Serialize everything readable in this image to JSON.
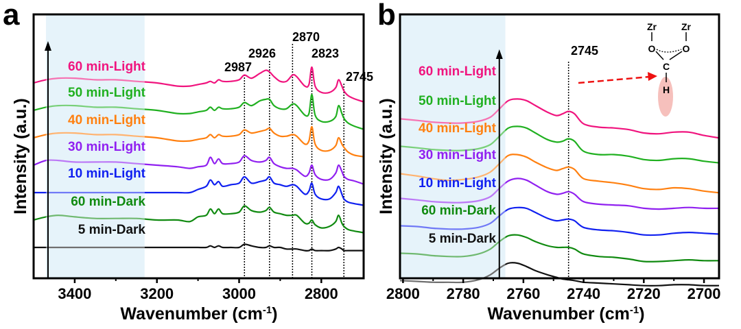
{
  "chart_data": [
    {
      "panel": "a",
      "type": "line",
      "title": "",
      "xlabel": "Wavenumber (cm-1)",
      "xlabel_main": "Wavenumber (cm",
      "xlabel_sup": "-1",
      "xlabel_end": ")",
      "ylabel": "Intensity (a.u.)",
      "xlim": [
        3500,
        2697
      ],
      "x_reversed": true,
      "xticks": [
        3400,
        3200,
        3000,
        2800
      ],
      "xminor": [
        3300,
        3100,
        2900
      ],
      "shaded_region": [
        3470,
        3230
      ],
      "shade_color": "#e6f3fa",
      "arrow_x": 3465,
      "peak_lines": [
        2987,
        2926,
        2870,
        2823,
        2745
      ],
      "peak_labels": [
        "2987",
        "2926",
        "2870",
        "2823",
        "2745"
      ],
      "x": [
        3500,
        3470,
        3440,
        3400,
        3350,
        3300,
        3250,
        3200,
        3150,
        3120,
        3100,
        3080,
        3070,
        3060,
        3050,
        3040,
        3020,
        3000,
        2987,
        2970,
        2950,
        2935,
        2926,
        2915,
        2900,
        2885,
        2870,
        2860,
        2840,
        2830,
        2823,
        2815,
        2800,
        2780,
        2765,
        2758,
        2750,
        2745,
        2735,
        2720,
        2697
      ],
      "series": [
        {
          "name": "60 min-Light",
          "color": "#f0147e",
          "values": [
            0.9,
            0.92,
            0.93,
            0.93,
            0.92,
            0.92,
            0.91,
            0.9,
            0.88,
            0.88,
            0.89,
            0.9,
            0.91,
            0.9,
            0.92,
            0.91,
            0.91,
            0.92,
            0.95,
            0.93,
            0.96,
            0.98,
            0.97,
            0.94,
            0.91,
            0.91,
            0.95,
            0.94,
            0.88,
            0.89,
            1.0,
            0.88,
            0.84,
            0.84,
            0.87,
            0.92,
            0.88,
            0.85,
            0.82,
            0.8,
            0.78
          ]
        },
        {
          "name": "50 min-Light",
          "color": "#20b020",
          "values": [
            0.9,
            0.92,
            0.93,
            0.93,
            0.92,
            0.92,
            0.91,
            0.9,
            0.88,
            0.88,
            0.89,
            0.9,
            0.92,
            0.9,
            0.92,
            0.91,
            0.91,
            0.92,
            0.95,
            0.93,
            0.96,
            0.97,
            0.97,
            0.93,
            0.91,
            0.91,
            0.94,
            0.93,
            0.87,
            0.88,
            1.0,
            0.87,
            0.83,
            0.83,
            0.86,
            0.93,
            0.88,
            0.85,
            0.82,
            0.8,
            0.78
          ]
        },
        {
          "name": "40 min-Light",
          "color": "#ff8010",
          "values": [
            0.9,
            0.92,
            0.93,
            0.93,
            0.92,
            0.92,
            0.91,
            0.9,
            0.88,
            0.88,
            0.89,
            0.9,
            0.92,
            0.9,
            0.92,
            0.91,
            0.91,
            0.92,
            0.95,
            0.93,
            0.94,
            0.95,
            0.96,
            0.93,
            0.91,
            0.91,
            0.92,
            0.91,
            0.86,
            0.88,
            0.97,
            0.86,
            0.82,
            0.82,
            0.85,
            0.9,
            0.86,
            0.84,
            0.81,
            0.79,
            0.78
          ]
        },
        {
          "name": "30 min-Light",
          "color": "#9020f0",
          "values": [
            0.9,
            0.93,
            0.93,
            0.92,
            0.92,
            0.92,
            0.91,
            0.9,
            0.89,
            0.88,
            0.89,
            0.9,
            0.95,
            0.91,
            0.94,
            0.91,
            0.91,
            0.92,
            0.96,
            0.93,
            0.92,
            0.93,
            0.95,
            0.91,
            0.89,
            0.88,
            0.88,
            0.87,
            0.83,
            0.85,
            0.9,
            0.84,
            0.81,
            0.81,
            0.85,
            0.9,
            0.86,
            0.83,
            0.81,
            0.8,
            0.78
          ]
        },
        {
          "name": "10 min-Light",
          "color": "#1020f0",
          "values": [
            0.9,
            0.9,
            0.9,
            0.9,
            0.9,
            0.9,
            0.9,
            0.9,
            0.9,
            0.9,
            0.92,
            0.94,
            0.98,
            0.95,
            0.97,
            0.94,
            0.95,
            0.96,
            1.0,
            0.96,
            0.97,
            0.98,
            1.0,
            0.96,
            0.95,
            0.94,
            0.95,
            0.94,
            0.89,
            0.91,
            0.96,
            0.89,
            0.86,
            0.86,
            0.9,
            0.94,
            0.89,
            0.86,
            0.84,
            0.83,
            0.82
          ]
        },
        {
          "name": "60 min-Dark",
          "color": "#108a10",
          "values": [
            0.9,
            0.92,
            0.93,
            0.92,
            0.91,
            0.91,
            0.91,
            0.9,
            0.9,
            0.89,
            0.92,
            0.93,
            0.97,
            0.94,
            0.97,
            0.94,
            0.94,
            0.95,
            0.99,
            0.96,
            0.95,
            0.96,
            0.98,
            0.95,
            0.94,
            0.93,
            0.93,
            0.93,
            0.88,
            0.88,
            0.9,
            0.87,
            0.85,
            0.86,
            0.89,
            0.93,
            0.88,
            0.86,
            0.84,
            0.83,
            0.82
          ]
        },
        {
          "name": "5 min-Dark",
          "color": "#111111",
          "values": [
            0.9,
            0.9,
            0.9,
            0.9,
            0.9,
            0.9,
            0.9,
            0.9,
            0.9,
            0.9,
            0.9,
            0.9,
            0.91,
            0.9,
            0.91,
            0.9,
            0.9,
            0.9,
            0.92,
            0.91,
            0.9,
            0.9,
            0.91,
            0.9,
            0.9,
            0.89,
            0.89,
            0.89,
            0.88,
            0.88,
            0.89,
            0.88,
            0.88,
            0.88,
            0.89,
            0.9,
            0.89,
            0.88,
            0.88,
            0.88,
            0.88
          ]
        }
      ]
    },
    {
      "panel": "b",
      "type": "line",
      "title": "",
      "xlabel": "Wavenumber (cm-1)",
      "xlabel_main": "Wavenumber (cm",
      "xlabel_sup": "-1",
      "xlabel_end": ")",
      "ylabel": "Intensity (a.u.)",
      "xlim": [
        2801,
        2695
      ],
      "x_reversed": true,
      "xticks": [
        2800,
        2780,
        2760,
        2740,
        2720,
        2700
      ],
      "xminor": [
        2790,
        2770,
        2750,
        2730,
        2710
      ],
      "shaded_region": [
        2801,
        2766
      ],
      "shade_color": "#e6f3fa",
      "arrow_x": 2768,
      "peak_lines": [
        2745
      ],
      "peak_labels": [
        "2745"
      ],
      "annotation": {
        "text": "formate structure Zr-O-C(H)-O-Zr",
        "atoms": {
          "zr1": "Zr",
          "zr2": "Zr",
          "o1": "O",
          "o2": "O",
          "c": "C",
          "h": "H"
        },
        "arrow_color": "#ee1111",
        "highlight_color": "#f5b5b0"
      },
      "x": [
        2801,
        2795,
        2790,
        2785,
        2780,
        2775,
        2771,
        2768,
        2765,
        2762,
        2759,
        2756,
        2752,
        2749,
        2747,
        2745,
        2743,
        2740,
        2735,
        2730,
        2725,
        2720,
        2715,
        2710,
        2705,
        2700,
        2695
      ],
      "series": [
        {
          "name": "60 min-Light",
          "color": "#f0147e",
          "values": [
            0.5,
            0.48,
            0.46,
            0.45,
            0.45,
            0.47,
            0.52,
            0.62,
            0.72,
            0.74,
            0.72,
            0.66,
            0.58,
            0.54,
            0.56,
            0.59,
            0.56,
            0.44,
            0.4,
            0.39,
            0.37,
            0.33,
            0.32,
            0.34,
            0.34,
            0.3,
            0.27
          ]
        },
        {
          "name": "50 min-Light",
          "color": "#20b020",
          "values": [
            0.5,
            0.48,
            0.46,
            0.45,
            0.45,
            0.47,
            0.52,
            0.62,
            0.72,
            0.74,
            0.72,
            0.66,
            0.58,
            0.55,
            0.56,
            0.59,
            0.56,
            0.44,
            0.4,
            0.4,
            0.38,
            0.34,
            0.33,
            0.35,
            0.35,
            0.32,
            0.3
          ]
        },
        {
          "name": "40 min-Light",
          "color": "#ff8010",
          "values": [
            0.5,
            0.47,
            0.44,
            0.42,
            0.43,
            0.46,
            0.52,
            0.62,
            0.72,
            0.73,
            0.7,
            0.64,
            0.57,
            0.54,
            0.56,
            0.58,
            0.55,
            0.44,
            0.41,
            0.39,
            0.36,
            0.32,
            0.31,
            0.33,
            0.32,
            0.29,
            0.27
          ]
        },
        {
          "name": "30 min-Light",
          "color": "#9020f0",
          "values": [
            0.5,
            0.48,
            0.46,
            0.45,
            0.45,
            0.47,
            0.52,
            0.62,
            0.71,
            0.74,
            0.72,
            0.66,
            0.58,
            0.55,
            0.56,
            0.58,
            0.55,
            0.46,
            0.43,
            0.42,
            0.41,
            0.38,
            0.37,
            0.38,
            0.39,
            0.38,
            0.38
          ]
        },
        {
          "name": "10 min-Light",
          "color": "#1020f0",
          "values": [
            0.5,
            0.49,
            0.47,
            0.46,
            0.46,
            0.48,
            0.53,
            0.62,
            0.7,
            0.72,
            0.71,
            0.66,
            0.59,
            0.56,
            0.57,
            0.58,
            0.56,
            0.48,
            0.45,
            0.44,
            0.42,
            0.39,
            0.39,
            0.41,
            0.42,
            0.41,
            0.4
          ]
        },
        {
          "name": "60 min-Dark",
          "color": "#108a10",
          "values": [
            0.5,
            0.49,
            0.47,
            0.46,
            0.46,
            0.49,
            0.55,
            0.64,
            0.71,
            0.72,
            0.69,
            0.64,
            0.59,
            0.57,
            0.57,
            0.57,
            0.55,
            0.49,
            0.46,
            0.45,
            0.43,
            0.4,
            0.4,
            0.41,
            0.42,
            0.41,
            0.41
          ]
        },
        {
          "name": "5 min-Dark",
          "color": "#111111",
          "values": [
            0.5,
            0.49,
            0.48,
            0.48,
            0.48,
            0.51,
            0.57,
            0.65,
            0.71,
            0.71,
            0.67,
            0.62,
            0.57,
            0.54,
            0.52,
            0.51,
            0.5,
            0.48,
            0.47,
            0.46,
            0.45,
            0.44,
            0.44,
            0.45,
            0.45,
            0.44,
            0.44
          ]
        }
      ]
    }
  ]
}
